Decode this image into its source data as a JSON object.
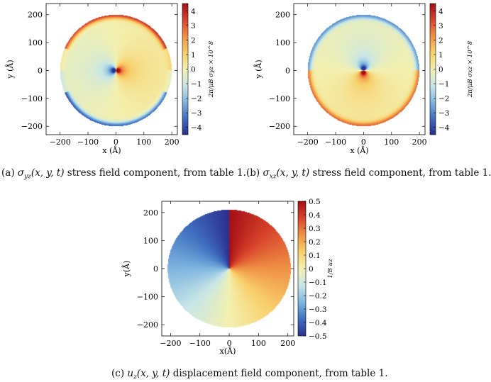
{
  "figure": {
    "panels": [
      {
        "id": "a",
        "caption_prefix": "(a) ",
        "caption_math_base": "σ",
        "caption_math_sub": "yz",
        "caption_args": "(x, y, t)",
        "caption_text": " stress field component, from table 1.",
        "xlabel": "x (Å)",
        "ylabel": "y (Å)",
        "colorbar_label": "2π/μB σyz × 10^8",
        "colorbar_ticks": [
          "4",
          "3",
          "2",
          "1",
          "0",
          "−1",
          "−2",
          "−3",
          "−4"
        ],
        "x_ticks": [
          "−200",
          "−100",
          "0",
          "100",
          "200"
        ],
        "y_ticks": [
          "200",
          "100",
          "0",
          "−100",
          "−200"
        ]
      },
      {
        "id": "b",
        "caption_prefix": "(b) ",
        "caption_math_base": "σ",
        "caption_math_sub": "xz",
        "caption_args": "(x, y, t)",
        "caption_text": " stress field component, from table 1.",
        "xlabel": "x (Å)",
        "ylabel": "y (Å)",
        "colorbar_label": "2π/μB σxz × 10^8",
        "colorbar_ticks": [
          "4",
          "3",
          "2",
          "1",
          "0",
          "−1",
          "−2",
          "−3",
          "−4"
        ],
        "x_ticks": [
          "−200",
          "−100",
          "0",
          "100",
          "200"
        ],
        "y_ticks": [
          "200",
          "100",
          "0",
          "−100",
          "−200"
        ]
      },
      {
        "id": "c",
        "caption_prefix": "(c) ",
        "caption_math_base": "u",
        "caption_math_sub": "z",
        "caption_args": "(x, y, t)",
        "caption_text": " displacement field component, from table 1.",
        "xlabel": "x(Å)",
        "ylabel": "y(Å)",
        "colorbar_label": "1/B uz",
        "colorbar_ticks": [
          "0.5",
          "0.4",
          "0.3",
          "0.2",
          "0.1",
          "0",
          "−0.1",
          "−0.2",
          "−0.3",
          "−0.4",
          "−0.5"
        ],
        "x_ticks": [
          "−200",
          "−100",
          "0",
          "100",
          "200"
        ],
        "y_ticks": [
          "200",
          "100",
          "0",
          "−100",
          "−200"
        ]
      }
    ]
  },
  "chart_data": [
    {
      "type": "heatmap",
      "field": "sigma_yz",
      "xlabel": "x (Å)",
      "ylabel": "y (Å)",
      "xlim": [
        -250,
        220
      ],
      "ylim": [
        -230,
        240
      ],
      "radius": 200,
      "core_radius": 12,
      "clim": [
        -4.5,
        4.5
      ],
      "colorbar_ticks": [
        4,
        3,
        2,
        1,
        0,
        -1,
        -2,
        -3,
        -4
      ],
      "colormap": [
        "#2b2f8f",
        "#3f6fc0",
        "#7fb6e0",
        "#c8e6e6",
        "#f3f0b0",
        "#f8cf6a",
        "#f09245",
        "#d8432c",
        "#a50f15"
      ]
    },
    {
      "type": "heatmap",
      "field": "sigma_xz",
      "xlabel": "x (Å)",
      "ylabel": "y (Å)",
      "xlim": [
        -250,
        220
      ],
      "ylim": [
        -230,
        240
      ],
      "radius": 200,
      "core_radius": 12,
      "clim": [
        -4.5,
        4.5
      ],
      "colorbar_ticks": [
        4,
        3,
        2,
        1,
        0,
        -1,
        -2,
        -3,
        -4
      ],
      "colormap": [
        "#2b2f8f",
        "#3f6fc0",
        "#7fb6e0",
        "#c8e6e6",
        "#f3f0b0",
        "#f8cf6a",
        "#f09245",
        "#d8432c",
        "#a50f15"
      ]
    },
    {
      "type": "heatmap",
      "field": "u_z",
      "xlabel": "x(Å)",
      "ylabel": "y(Å)",
      "xlim": [
        -230,
        220
      ],
      "ylim": [
        -240,
        240
      ],
      "radius": 210,
      "clim": [
        -0.5,
        0.5
      ],
      "colorbar_ticks": [
        0.5,
        0.4,
        0.3,
        0.2,
        0.1,
        0,
        -0.1,
        -0.2,
        -0.3,
        -0.4,
        -0.5
      ],
      "colormap": [
        "#2b2f8f",
        "#3f6fc0",
        "#7fb6e0",
        "#c8e6e6",
        "#f3f0b0",
        "#f8cf6a",
        "#f09245",
        "#d8432c",
        "#a50f15"
      ]
    }
  ]
}
